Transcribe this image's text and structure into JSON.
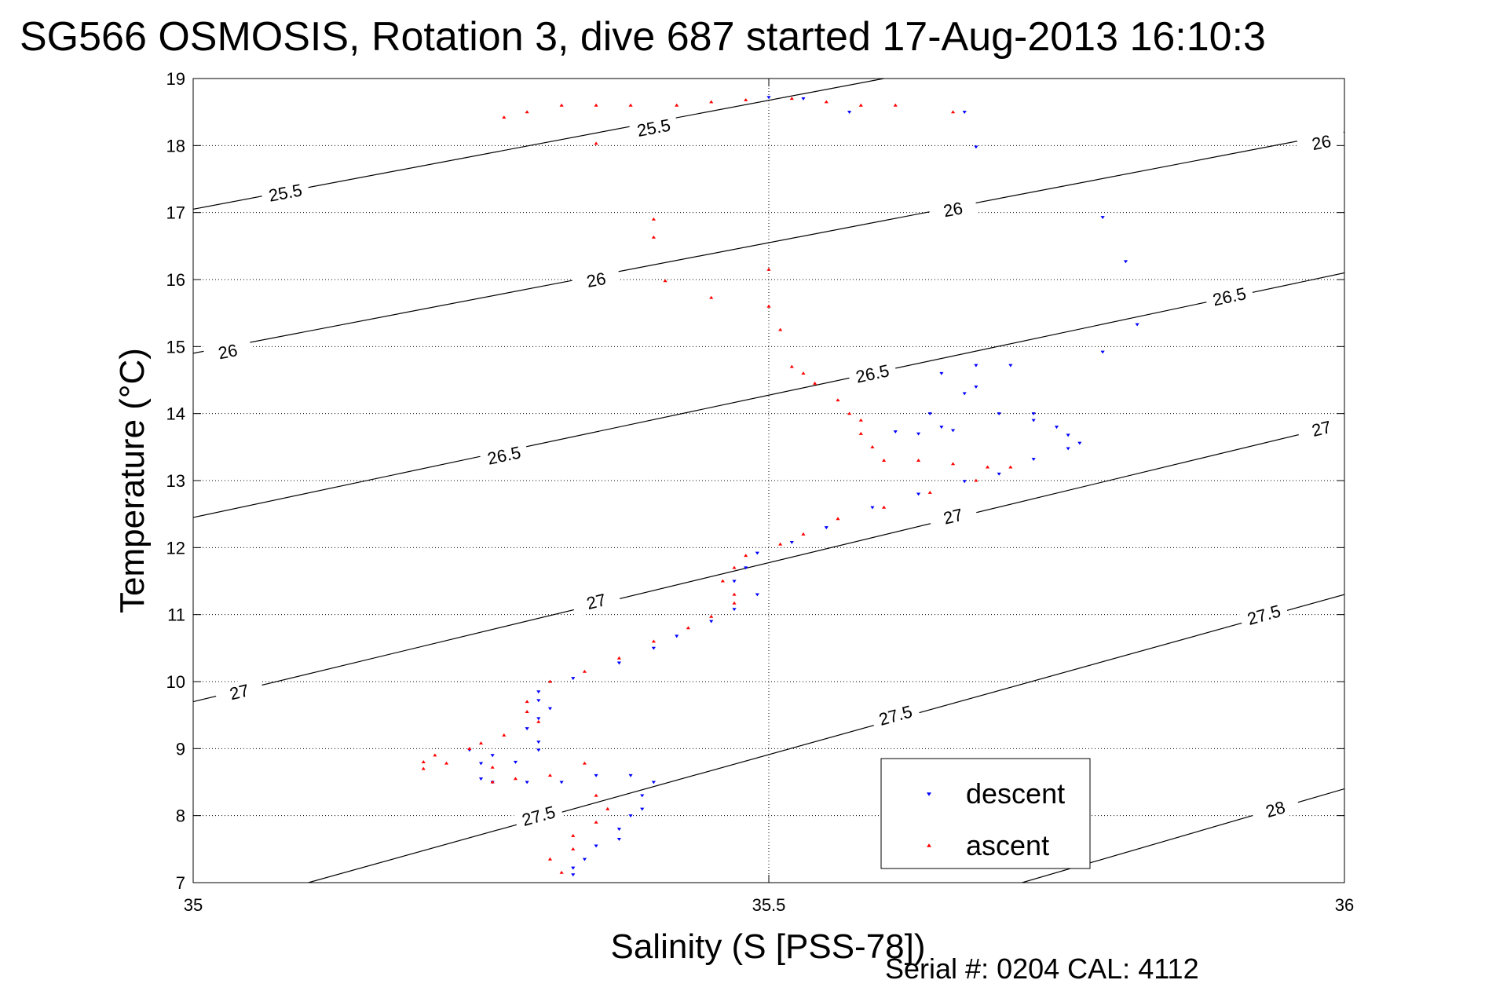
{
  "chart_data": {
    "type": "scatter",
    "title": "SG566 OSMOSIS, Rotation 3, dive 687 started 17-Aug-2013 16:10:3",
    "xlabel": "Salinity (S [PSS-78])",
    "ylabel": "Temperature (°C)",
    "footer": "Serial #: 0204  CAL: 4112",
    "xlim": [
      35,
      36
    ],
    "ylim": [
      7,
      19
    ],
    "x_ticks": [
      "35",
      "35.5",
      "36"
    ],
    "x_tick_values": [
      35,
      35.5,
      36
    ],
    "y_ticks": [
      "7",
      "8",
      "9",
      "10",
      "11",
      "12",
      "13",
      "14",
      "15",
      "16",
      "17",
      "18",
      "19"
    ],
    "y_tick_values": [
      7,
      8,
      9,
      10,
      11,
      12,
      13,
      14,
      15,
      16,
      17,
      18,
      19
    ],
    "grid": "dotted",
    "legend_position": "bottom-right",
    "contours": [
      {
        "label": "25.5",
        "points": [
          [
            35.0,
            17.05
          ],
          [
            35.6,
            19.0
          ]
        ],
        "label_positions": [
          [
            35.08,
            17.3
          ],
          [
            35.4,
            18.27
          ]
        ]
      },
      {
        "label": "26",
        "points": [
          [
            35.0,
            14.9
          ],
          [
            36.0,
            18.2
          ]
        ],
        "label_positions": [
          [
            35.03,
            14.93
          ],
          [
            35.35,
            16.0
          ],
          [
            35.66,
            17.05
          ],
          [
            35.98,
            18.05
          ]
        ]
      },
      {
        "label": "26.5",
        "points": [
          [
            35.0,
            12.45
          ],
          [
            36.0,
            16.1
          ]
        ],
        "label_positions": [
          [
            35.27,
            13.38
          ],
          [
            35.59,
            14.6
          ],
          [
            35.9,
            15.75
          ]
        ]
      },
      {
        "label": "27",
        "points": [
          [
            35.0,
            9.7
          ],
          [
            36.0,
            13.85
          ]
        ],
        "label_positions": [
          [
            35.04,
            9.85
          ],
          [
            35.35,
            11.2
          ],
          [
            35.66,
            12.47
          ],
          [
            35.98,
            13.78
          ]
        ]
      },
      {
        "label": "27.5",
        "points": [
          [
            35.1,
            7.0
          ],
          [
            36.0,
            11.3
          ]
        ],
        "label_positions": [
          [
            35.3,
            8.0
          ],
          [
            35.61,
            9.5
          ],
          [
            35.93,
            11.0
          ]
        ]
      },
      {
        "label": "28",
        "points": [
          [
            35.72,
            7.0
          ],
          [
            36.0,
            8.4
          ]
        ],
        "label_positions": [
          [
            35.94,
            8.1
          ]
        ]
      }
    ],
    "series": [
      {
        "name": "descent",
        "color": "#0000ff",
        "marker": "triangle-down",
        "points": [
          [
            35.5,
            18.72
          ],
          [
            35.53,
            18.7
          ],
          [
            35.57,
            18.5
          ],
          [
            35.67,
            18.5
          ],
          [
            35.68,
            17.98
          ],
          [
            35.79,
            16.93
          ],
          [
            35.81,
            16.27
          ],
          [
            35.82,
            15.33
          ],
          [
            35.79,
            14.92
          ],
          [
            35.68,
            14.72
          ],
          [
            35.71,
            14.72
          ],
          [
            35.65,
            14.6
          ],
          [
            35.68,
            14.4
          ],
          [
            35.67,
            14.3
          ],
          [
            35.73,
            14.0
          ],
          [
            35.7,
            14.0
          ],
          [
            35.64,
            14.0
          ],
          [
            35.65,
            13.8
          ],
          [
            35.61,
            13.73
          ],
          [
            35.63,
            13.7
          ],
          [
            35.66,
            13.75
          ],
          [
            35.73,
            13.9
          ],
          [
            35.75,
            13.8
          ],
          [
            35.76,
            13.68
          ],
          [
            35.77,
            13.56
          ],
          [
            35.76,
            13.48
          ],
          [
            35.73,
            13.32
          ],
          [
            35.7,
            13.1
          ],
          [
            35.67,
            12.99
          ],
          [
            35.63,
            12.8
          ],
          [
            35.59,
            12.6
          ],
          [
            35.55,
            12.3
          ],
          [
            35.52,
            12.08
          ],
          [
            35.49,
            11.92
          ],
          [
            35.48,
            11.7
          ],
          [
            35.47,
            11.5
          ],
          [
            35.49,
            11.3
          ],
          [
            35.47,
            11.08
          ],
          [
            35.45,
            10.9
          ],
          [
            35.42,
            10.68
          ],
          [
            35.4,
            10.5
          ],
          [
            35.37,
            10.28
          ],
          [
            35.33,
            10.05
          ],
          [
            35.3,
            9.85
          ],
          [
            35.3,
            9.72
          ],
          [
            35.31,
            9.6
          ],
          [
            35.3,
            9.45
          ],
          [
            35.29,
            9.3
          ],
          [
            35.3,
            9.1
          ],
          [
            35.3,
            8.98
          ],
          [
            35.28,
            8.8
          ],
          [
            35.26,
            8.9
          ],
          [
            35.24,
            8.98
          ],
          [
            35.25,
            8.78
          ],
          [
            35.25,
            8.55
          ],
          [
            35.26,
            8.5
          ],
          [
            35.29,
            8.5
          ],
          [
            35.32,
            8.5
          ],
          [
            35.35,
            8.6
          ],
          [
            35.38,
            8.6
          ],
          [
            35.4,
            8.5
          ],
          [
            35.39,
            8.3
          ],
          [
            35.39,
            8.1
          ],
          [
            35.38,
            8.0
          ],
          [
            35.37,
            7.8
          ],
          [
            35.37,
            7.65
          ],
          [
            35.35,
            7.55
          ],
          [
            35.34,
            7.35
          ],
          [
            35.33,
            7.22
          ],
          [
            35.33,
            7.12
          ]
        ]
      },
      {
        "name": "ascent",
        "color": "#ff0000",
        "marker": "triangle-up",
        "points": [
          [
            35.27,
            18.42
          ],
          [
            35.29,
            18.5
          ],
          [
            35.32,
            18.6
          ],
          [
            35.35,
            18.6
          ],
          [
            35.38,
            18.6
          ],
          [
            35.42,
            18.6
          ],
          [
            35.45,
            18.65
          ],
          [
            35.48,
            18.68
          ],
          [
            35.52,
            18.7
          ],
          [
            35.55,
            18.65
          ],
          [
            35.58,
            18.6
          ],
          [
            35.61,
            18.6
          ],
          [
            35.66,
            18.5
          ],
          [
            35.35,
            18.03
          ],
          [
            35.4,
            16.9
          ],
          [
            35.41,
            15.98
          ],
          [
            35.4,
            16.63
          ],
          [
            35.45,
            15.73
          ],
          [
            35.5,
            16.15
          ],
          [
            35.5,
            15.6
          ],
          [
            35.51,
            15.25
          ],
          [
            35.52,
            14.7
          ],
          [
            35.53,
            14.6
          ],
          [
            35.54,
            14.45
          ],
          [
            35.56,
            14.2
          ],
          [
            35.57,
            14.0
          ],
          [
            35.58,
            13.9
          ],
          [
            35.58,
            13.7
          ],
          [
            35.59,
            13.5
          ],
          [
            35.6,
            13.3
          ],
          [
            35.63,
            13.3
          ],
          [
            35.66,
            13.25
          ],
          [
            35.69,
            13.2
          ],
          [
            35.71,
            13.2
          ],
          [
            35.68,
            13.0
          ],
          [
            35.64,
            12.82
          ],
          [
            35.6,
            12.6
          ],
          [
            35.56,
            12.43
          ],
          [
            35.53,
            12.2
          ],
          [
            35.51,
            12.05
          ],
          [
            35.48,
            11.88
          ],
          [
            35.47,
            11.7
          ],
          [
            35.46,
            11.5
          ],
          [
            35.47,
            11.3
          ],
          [
            35.47,
            11.17
          ],
          [
            35.45,
            10.97
          ],
          [
            35.43,
            10.8
          ],
          [
            35.4,
            10.6
          ],
          [
            35.37,
            10.35
          ],
          [
            35.34,
            10.15
          ],
          [
            35.31,
            10.0
          ],
          [
            35.29,
            9.7
          ],
          [
            35.29,
            9.55
          ],
          [
            35.3,
            9.4
          ],
          [
            35.27,
            9.2
          ],
          [
            35.25,
            9.08
          ],
          [
            35.24,
            9.0
          ],
          [
            35.21,
            8.9
          ],
          [
            35.2,
            8.8
          ],
          [
            35.2,
            8.7
          ],
          [
            35.22,
            8.78
          ],
          [
            35.26,
            8.72
          ],
          [
            35.26,
            8.5
          ],
          [
            35.28,
            8.55
          ],
          [
            35.31,
            8.6
          ],
          [
            35.34,
            8.78
          ],
          [
            35.35,
            8.3
          ],
          [
            35.36,
            8.1
          ],
          [
            35.35,
            7.9
          ],
          [
            35.33,
            7.7
          ],
          [
            35.33,
            7.5
          ],
          [
            35.31,
            7.35
          ],
          [
            35.32,
            7.15
          ]
        ]
      }
    ]
  }
}
